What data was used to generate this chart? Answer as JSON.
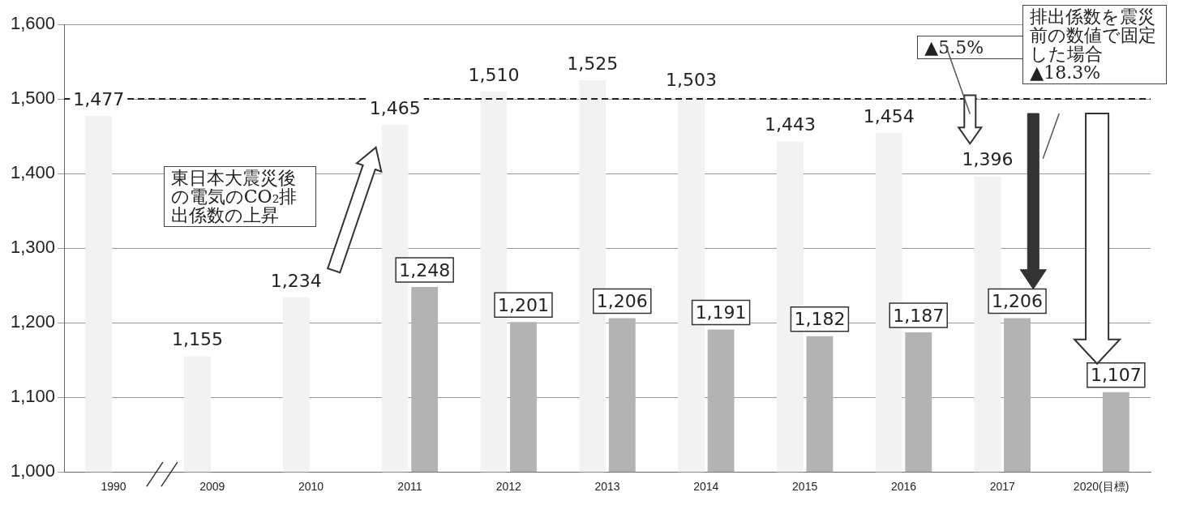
{
  "chart_data": {
    "type": "bar",
    "categories": [
      "1990",
      "2009",
      "2010",
      "2011",
      "2012",
      "2013",
      "2014",
      "2015",
      "2016",
      "2017",
      "2020(目標)"
    ],
    "series": [
      {
        "color": "#f2f2f2",
        "values": [
          1477,
          1155,
          1234,
          1465,
          1510,
          1525,
          1503,
          1443,
          1454,
          1396,
          null
        ],
        "value_labels": [
          "1,477",
          "1,155",
          "1,234",
          "1,465",
          "1,510",
          "1,525",
          "1,503",
          "1,443",
          "1,454",
          "1,396",
          null
        ]
      },
      {
        "color": "#b3b3b3",
        "values": [
          null,
          null,
          null,
          1248,
          1201,
          1206,
          1191,
          1182,
          1187,
          1206,
          1107
        ],
        "value_labels": [
          null,
          null,
          null,
          "1,248",
          "1,201",
          "1,206",
          "1,191",
          "1,182",
          "1,187",
          "1,206",
          "1,107"
        ]
      }
    ],
    "ylim": [
      1000,
      1600
    ],
    "yticks": [
      {
        "value": 1000,
        "label": "1,000"
      },
      {
        "value": 1100,
        "label": "1,100"
      },
      {
        "value": 1200,
        "label": "1,200"
      },
      {
        "value": 1300,
        "label": "1,300"
      },
      {
        "value": 1400,
        "label": "1,400"
      },
      {
        "value": 1500,
        "label": "1,500"
      },
      {
        "value": 1600,
        "label": "1,600"
      }
    ],
    "grid": "y",
    "legend": false,
    "ref_lines": [
      {
        "axis": "y",
        "value": 1500,
        "color": "#222222",
        "line_style": "dashed"
      }
    ],
    "annotations": [
      "東日本大震災後の電気のCO₂排出係数の上昇",
      "▲5.5%",
      "排出係数を震災前の数値で固定した場合▲18.3%"
    ]
  }
}
